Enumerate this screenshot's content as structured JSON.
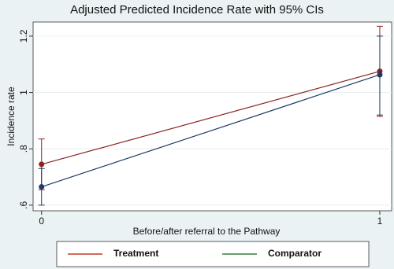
{
  "chart_data": {
    "type": "line-ci",
    "title": "Adjusted Predicted Incidence Rate with 95% CIs",
    "x_label": "Before/after referral to the Pathway",
    "y_label": "Incidence rate",
    "x": [
      0,
      1
    ],
    "series": [
      {
        "name": "Treatment",
        "color": "#8b2323",
        "legend_color": "#c0392b",
        "values": [
          0.745,
          1.075
        ],
        "lower": [
          0.655,
          0.915
        ],
        "upper": [
          0.835,
          1.235
        ]
      },
      {
        "name": "Comparator",
        "color": "#1f3a68",
        "legend_color": "#3a7d3a",
        "values": [
          0.665,
          1.063
        ],
        "lower": [
          0.6,
          0.92
        ],
        "upper": [
          0.73,
          1.2
        ]
      }
    ],
    "xlim": [
      -0.025,
      1.035
    ],
    "xticks": [
      0,
      1
    ],
    "ylim": [
      0.58,
      1.25
    ],
    "yticks": [
      {
        "value": 0.6,
        "label": ".6"
      },
      {
        "value": 0.8,
        "label": ".8"
      },
      1,
      1.2
    ],
    "grid": true,
    "legend": "bottom"
  }
}
